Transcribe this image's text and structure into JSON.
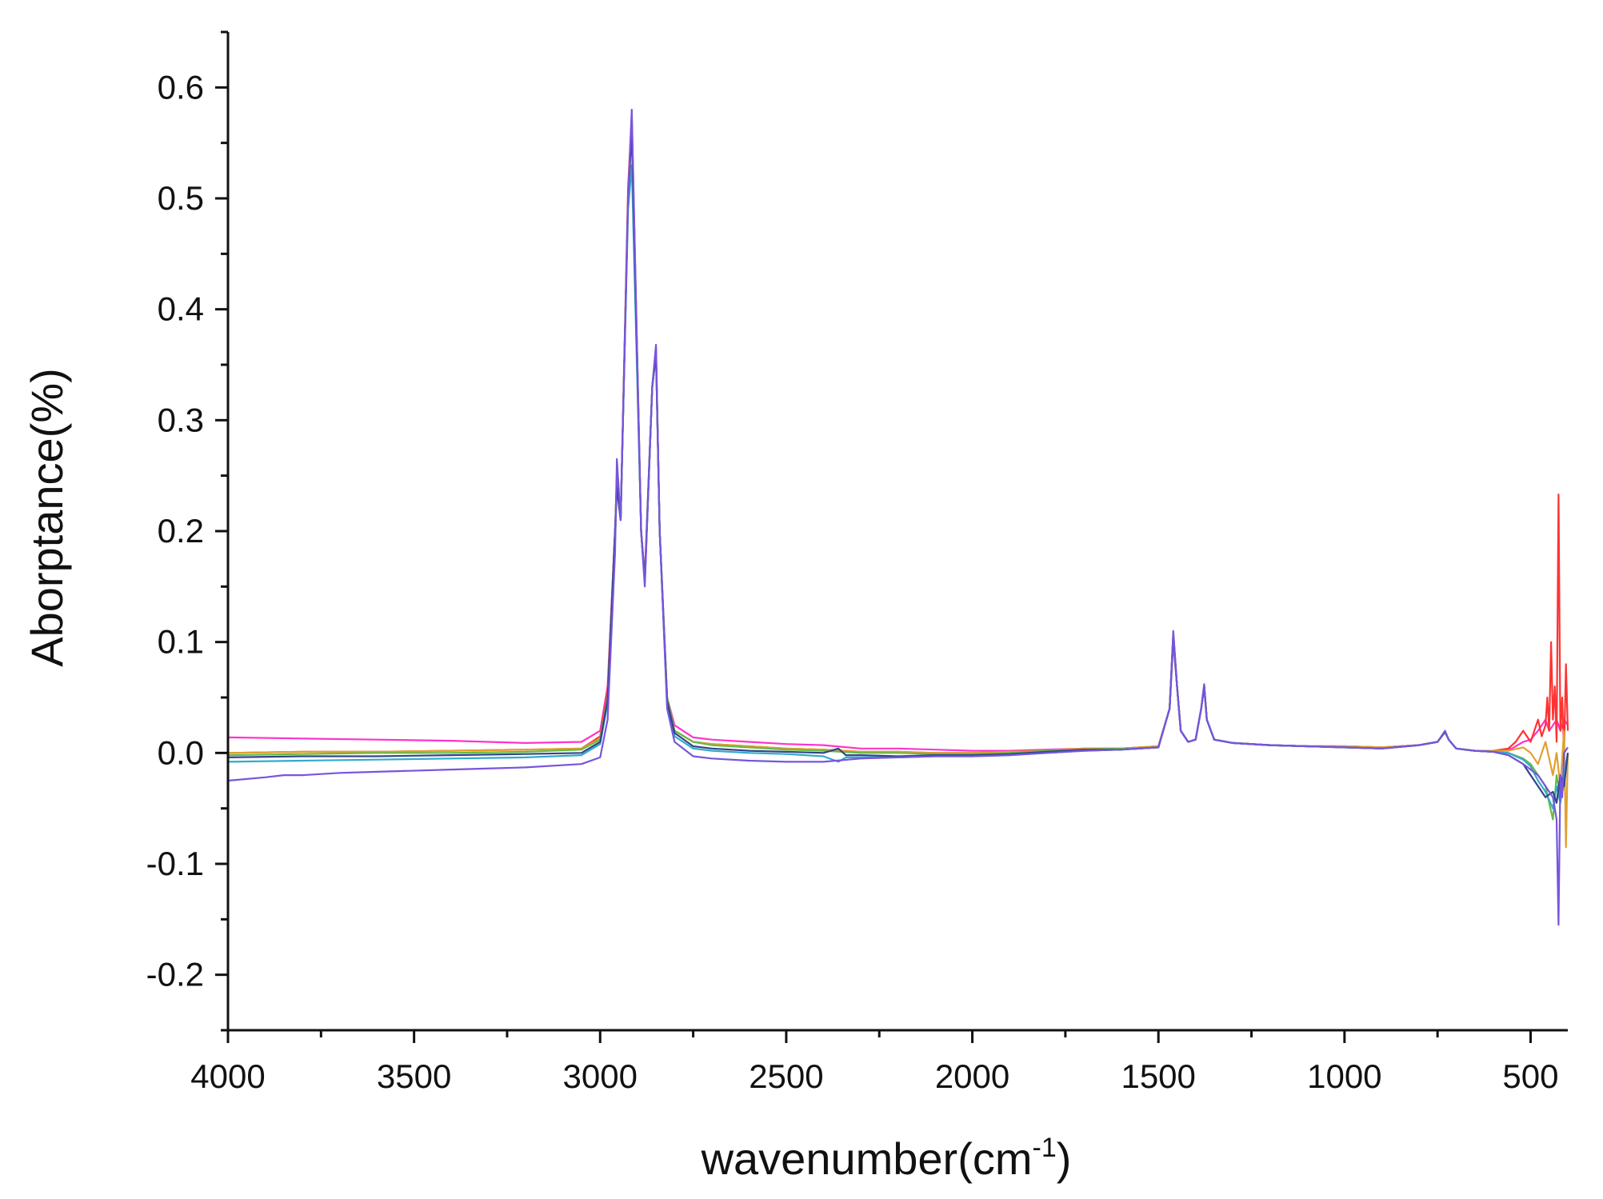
{
  "chart_data": {
    "type": "line",
    "title": "",
    "xlabel": "wavenumber(cm",
    "xlabel_sup": "-1",
    "xlabel_tail": ")",
    "ylabel": "Aborptance(%)",
    "xlim": [
      4000,
      400
    ],
    "ylim": [
      -0.25,
      0.65
    ],
    "x_reversed": true,
    "grid": false,
    "legend": "none",
    "x_ticks": [
      4000,
      3500,
      3000,
      2500,
      2000,
      1500,
      1000,
      500
    ],
    "x_tick_labels": [
      "4000",
      "3500",
      "3000",
      "2500",
      "2000",
      "1500",
      "1000",
      "500"
    ],
    "y_ticks": [
      0.6,
      0.5,
      0.4,
      0.3,
      0.2,
      0.1,
      0.0,
      -0.1,
      -0.2
    ],
    "y_tick_labels": [
      "0.6",
      "0.5",
      "0.4",
      "0.3",
      "0.2",
      "0.1",
      "0.0",
      "-0.1",
      "-0.2"
    ],
    "series": [
      {
        "color": "#ff33cc",
        "x": [
          4000,
          3800,
          3600,
          3400,
          3200,
          3050,
          3000,
          2980,
          2960,
          2955,
          2945,
          2925,
          2915,
          2890,
          2880,
          2860,
          2850,
          2840,
          2820,
          2800,
          2750,
          2700,
          2600,
          2500,
          2400,
          2300,
          2200,
          2100,
          2000,
          1900,
          1800,
          1700,
          1600,
          1500,
          1470,
          1460,
          1450,
          1440,
          1420,
          1400,
          1385,
          1377,
          1370,
          1350,
          1300,
          1200,
          1100,
          1000,
          900,
          800,
          750,
          730,
          720,
          700,
          650,
          600,
          550,
          520,
          500,
          480,
          460,
          450,
          440,
          430,
          420,
          410,
          400
        ],
        "y": [
          0.014,
          0.013,
          0.012,
          0.011,
          0.009,
          0.01,
          0.02,
          0.06,
          0.2,
          0.25,
          0.21,
          0.5,
          0.57,
          0.2,
          0.16,
          0.33,
          0.36,
          0.2,
          0.05,
          0.025,
          0.014,
          0.012,
          0.01,
          0.008,
          0.007,
          0.004,
          0.004,
          0.003,
          0.002,
          0.002,
          0.003,
          0.004,
          0.004,
          0.006,
          0.04,
          0.1,
          0.06,
          0.02,
          0.01,
          0.012,
          0.04,
          0.061,
          0.03,
          0.012,
          0.009,
          0.007,
          0.006,
          0.006,
          0.005,
          0.007,
          0.01,
          0.019,
          0.012,
          0.004,
          0.002,
          0.002,
          0.004,
          0.01,
          0.012,
          0.02,
          0.03,
          0.02,
          0.025,
          0.03,
          0.02,
          0.03,
          0.025
        ]
      },
      {
        "color": "#ff3333",
        "x": [
          4000,
          3800,
          3600,
          3400,
          3200,
          3050,
          3000,
          2980,
          2960,
          2955,
          2945,
          2925,
          2915,
          2890,
          2880,
          2860,
          2850,
          2840,
          2820,
          2800,
          2750,
          2700,
          2600,
          2500,
          2400,
          2300,
          2200,
          2100,
          2000,
          1900,
          1800,
          1700,
          1600,
          1500,
          1470,
          1460,
          1450,
          1440,
          1420,
          1400,
          1385,
          1377,
          1370,
          1350,
          1300,
          1200,
          1100,
          1000,
          900,
          800,
          750,
          730,
          720,
          700,
          650,
          600,
          560,
          540,
          520,
          500,
          480,
          470,
          460,
          455,
          450,
          445,
          440,
          435,
          430,
          425,
          420,
          415,
          410,
          405,
          400
        ],
        "y": [
          0.0,
          0.001,
          0.001,
          0.002,
          0.003,
          0.004,
          0.015,
          0.055,
          0.2,
          0.25,
          0.21,
          0.51,
          0.575,
          0.2,
          0.155,
          0.33,
          0.365,
          0.2,
          0.05,
          0.02,
          0.01,
          0.008,
          0.006,
          0.004,
          0.003,
          0.001,
          0.001,
          0.0,
          0.0,
          0.001,
          0.002,
          0.004,
          0.004,
          0.006,
          0.04,
          0.108,
          0.06,
          0.02,
          0.01,
          0.012,
          0.04,
          0.06,
          0.03,
          0.012,
          0.009,
          0.007,
          0.006,
          0.006,
          0.005,
          0.007,
          0.01,
          0.019,
          0.012,
          0.004,
          0.002,
          0.002,
          0.004,
          0.01,
          0.02,
          0.01,
          0.03,
          0.015,
          0.025,
          0.05,
          0.02,
          0.1,
          0.03,
          0.06,
          0.01,
          0.233,
          0.02,
          0.05,
          0.0,
          0.08,
          0.02
        ]
      },
      {
        "color": "#e0a030",
        "x": [
          4000,
          3800,
          3600,
          3400,
          3200,
          3050,
          3000,
          2980,
          2960,
          2955,
          2945,
          2925,
          2915,
          2890,
          2880,
          2860,
          2850,
          2840,
          2820,
          2800,
          2750,
          2700,
          2600,
          2500,
          2400,
          2300,
          2200,
          2100,
          2000,
          1900,
          1800,
          1700,
          1600,
          1500,
          1470,
          1460,
          1450,
          1440,
          1420,
          1400,
          1385,
          1377,
          1370,
          1350,
          1300,
          1200,
          1100,
          1000,
          900,
          800,
          750,
          730,
          720,
          700,
          650,
          600,
          560,
          520,
          500,
          480,
          460,
          440,
          430,
          420,
          410,
          405,
          400
        ],
        "y": [
          0.0,
          0.001,
          0.001,
          0.002,
          0.003,
          0.004,
          0.013,
          0.05,
          0.2,
          0.24,
          0.21,
          0.5,
          0.57,
          0.2,
          0.155,
          0.33,
          0.36,
          0.2,
          0.05,
          0.02,
          0.01,
          0.008,
          0.006,
          0.004,
          0.003,
          0.001,
          0.001,
          0.0,
          0.0,
          0.001,
          0.002,
          0.004,
          0.004,
          0.006,
          0.04,
          0.105,
          0.06,
          0.02,
          0.01,
          0.012,
          0.04,
          0.06,
          0.03,
          0.012,
          0.009,
          0.007,
          0.006,
          0.006,
          0.005,
          0.007,
          0.01,
          0.019,
          0.012,
          0.004,
          0.002,
          0.002,
          0.002,
          0.005,
          0.0,
          -0.01,
          0.01,
          -0.02,
          0.0,
          -0.03,
          0.02,
          -0.085,
          0.0
        ]
      },
      {
        "color": "#66bb44",
        "x": [
          4000,
          3800,
          3600,
          3400,
          3200,
          3050,
          3000,
          2980,
          2960,
          2955,
          2945,
          2925,
          2915,
          2890,
          2880,
          2860,
          2850,
          2840,
          2820,
          2800,
          2750,
          2700,
          2600,
          2500,
          2400,
          2300,
          2200,
          2100,
          2000,
          1900,
          1800,
          1700,
          1600,
          1500,
          1470,
          1460,
          1450,
          1440,
          1420,
          1400,
          1385,
          1377,
          1370,
          1350,
          1300,
          1200,
          1100,
          1000,
          900,
          800,
          750,
          730,
          720,
          700,
          650,
          600,
          560,
          520,
          500,
          480,
          460,
          450,
          440,
          430,
          420,
          410,
          400
        ],
        "y": [
          -0.002,
          -0.001,
          0.0,
          0.0,
          0.001,
          0.003,
          0.012,
          0.05,
          0.2,
          0.24,
          0.21,
          0.5,
          0.565,
          0.2,
          0.155,
          0.33,
          0.36,
          0.2,
          0.05,
          0.02,
          0.01,
          0.007,
          0.005,
          0.003,
          0.002,
          0.0,
          0.0,
          -0.001,
          -0.001,
          0.0,
          0.002,
          0.003,
          0.004,
          0.005,
          0.04,
          0.106,
          0.06,
          0.02,
          0.01,
          0.012,
          0.04,
          0.06,
          0.03,
          0.012,
          0.009,
          0.007,
          0.006,
          0.005,
          0.004,
          0.007,
          0.01,
          0.019,
          0.012,
          0.004,
          0.002,
          0.001,
          0.0,
          -0.005,
          -0.01,
          -0.02,
          -0.03,
          -0.045,
          -0.06,
          -0.02,
          -0.04,
          -0.03,
          0.0
        ]
      },
      {
        "color": "#33aacc",
        "x": [
          4000,
          3800,
          3600,
          3400,
          3200,
          3050,
          3000,
          2980,
          2960,
          2955,
          2945,
          2925,
          2915,
          2890,
          2880,
          2860,
          2850,
          2840,
          2820,
          2800,
          2750,
          2700,
          2600,
          2500,
          2400,
          2360,
          2340,
          2300,
          2200,
          2100,
          2000,
          1900,
          1800,
          1700,
          1600,
          1500,
          1470,
          1460,
          1450,
          1440,
          1420,
          1400,
          1385,
          1377,
          1370,
          1350,
          1300,
          1200,
          1100,
          1000,
          900,
          800,
          750,
          730,
          720,
          700,
          650,
          600,
          560,
          520,
          500,
          480,
          460,
          440,
          430,
          420,
          410,
          400
        ],
        "y": [
          -0.008,
          -0.007,
          -0.006,
          -0.005,
          -0.004,
          -0.002,
          0.008,
          0.045,
          0.19,
          0.24,
          0.21,
          0.49,
          0.53,
          0.2,
          0.155,
          0.33,
          0.36,
          0.2,
          0.045,
          0.015,
          0.004,
          0.002,
          0.0,
          -0.001,
          -0.003,
          -0.008,
          -0.004,
          -0.004,
          -0.004,
          -0.003,
          -0.003,
          -0.002,
          0.0,
          0.002,
          0.003,
          0.005,
          0.04,
          0.105,
          0.06,
          0.02,
          0.01,
          0.012,
          0.04,
          0.06,
          0.03,
          0.012,
          0.009,
          0.007,
          0.006,
          0.005,
          0.004,
          0.007,
          0.01,
          0.019,
          0.012,
          0.004,
          0.002,
          0.001,
          0.0,
          -0.006,
          -0.012,
          -0.025,
          -0.035,
          -0.05,
          -0.03,
          -0.045,
          -0.02,
          0.0
        ]
      },
      {
        "color": "#334488",
        "x": [
          4000,
          3800,
          3600,
          3400,
          3200,
          3050,
          3000,
          2980,
          2960,
          2955,
          2945,
          2925,
          2915,
          2890,
          2880,
          2860,
          2850,
          2840,
          2820,
          2800,
          2750,
          2700,
          2600,
          2500,
          2400,
          2360,
          2340,
          2300,
          2200,
          2100,
          2000,
          1900,
          1800,
          1700,
          1600,
          1500,
          1470,
          1460,
          1450,
          1440,
          1420,
          1400,
          1385,
          1377,
          1370,
          1350,
          1300,
          1200,
          1100,
          1000,
          900,
          800,
          750,
          730,
          720,
          700,
          650,
          600,
          560,
          520,
          500,
          480,
          460,
          440,
          430,
          420,
          410,
          400
        ],
        "y": [
          -0.004,
          -0.003,
          -0.003,
          -0.002,
          -0.001,
          0.0,
          0.01,
          0.048,
          0.2,
          0.24,
          0.21,
          0.5,
          0.56,
          0.2,
          0.155,
          0.33,
          0.36,
          0.2,
          0.047,
          0.018,
          0.006,
          0.004,
          0.002,
          0.001,
          0.0,
          0.004,
          -0.002,
          -0.002,
          -0.003,
          -0.002,
          -0.002,
          -0.001,
          0.001,
          0.003,
          0.003,
          0.005,
          0.04,
          0.107,
          0.06,
          0.02,
          0.01,
          0.012,
          0.04,
          0.061,
          0.03,
          0.012,
          0.009,
          0.007,
          0.006,
          0.005,
          0.004,
          0.007,
          0.01,
          0.019,
          0.012,
          0.004,
          0.002,
          0.001,
          -0.002,
          -0.01,
          -0.02,
          -0.03,
          -0.04,
          -0.035,
          -0.045,
          -0.02,
          -0.03,
          0.0
        ]
      },
      {
        "color": "#7755dd",
        "x": [
          4000,
          3900,
          3850,
          3800,
          3700,
          3600,
          3400,
          3200,
          3050,
          3000,
          2980,
          2960,
          2955,
          2945,
          2925,
          2915,
          2890,
          2880,
          2860,
          2850,
          2840,
          2820,
          2800,
          2750,
          2700,
          2600,
          2500,
          2400,
          2300,
          2200,
          2100,
          2000,
          1900,
          1800,
          1700,
          1600,
          1500,
          1470,
          1460,
          1450,
          1440,
          1420,
          1400,
          1385,
          1377,
          1370,
          1350,
          1300,
          1200,
          1100,
          1000,
          900,
          800,
          750,
          730,
          720,
          700,
          650,
          600,
          560,
          520,
          500,
          480,
          460,
          440,
          430,
          425,
          420,
          415,
          410,
          400
        ],
        "y": [
          -0.025,
          -0.022,
          -0.02,
          -0.02,
          -0.018,
          -0.017,
          -0.015,
          -0.013,
          -0.01,
          -0.004,
          0.03,
          0.18,
          0.265,
          0.21,
          0.5,
          0.58,
          0.2,
          0.15,
          0.33,
          0.368,
          0.2,
          0.04,
          0.01,
          -0.003,
          -0.005,
          -0.007,
          -0.008,
          -0.008,
          -0.005,
          -0.004,
          -0.003,
          -0.003,
          -0.002,
          0.0,
          0.002,
          0.003,
          0.005,
          0.04,
          0.11,
          0.06,
          0.02,
          0.01,
          0.012,
          0.04,
          0.062,
          0.03,
          0.012,
          0.009,
          0.007,
          0.006,
          0.005,
          0.004,
          0.007,
          0.01,
          0.02,
          0.012,
          0.004,
          0.002,
          0.001,
          -0.002,
          -0.01,
          -0.015,
          -0.02,
          -0.03,
          -0.04,
          -0.06,
          -0.155,
          -0.02,
          -0.04,
          0.0,
          0.005
        ]
      }
    ]
  }
}
